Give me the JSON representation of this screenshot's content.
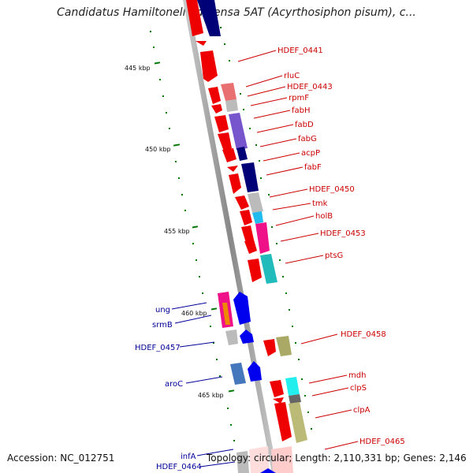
{
  "title": "Candidatus Hamiltonella defensa 5AT (Acyrthosiphon pisum), c...",
  "footer": {
    "accession": "Accession: NC_012751",
    "stats": "Topology: circular; Length: 2,110,331 bp; Genes: 2,146"
  },
  "scale": {
    "ticks": [
      "445 kbp",
      "450 kbp",
      "455 kbp",
      "460 kbp",
      "465 kbp"
    ]
  },
  "colors": {
    "backbone": "#999999",
    "tick": "#007700",
    "forward_label": "#cc0000",
    "reverse_label": "#000099"
  },
  "forward_genes": [
    "HDEF_0441",
    "rluC",
    "HDEF_0443",
    "rpmF",
    "fabH",
    "fabD",
    "fabG",
    "acpP",
    "fabF",
    "HDEF_0450",
    "tmk",
    "holB",
    "HDEF_0453",
    "ptsG",
    "HDEF_0458",
    "mdh",
    "clpS",
    "clpA",
    "HDEF_0465"
  ],
  "reverse_genes": [
    "ung",
    "srmB",
    "HDEF_0457",
    "aroC",
    "infA",
    "HDEF_0464"
  ]
}
